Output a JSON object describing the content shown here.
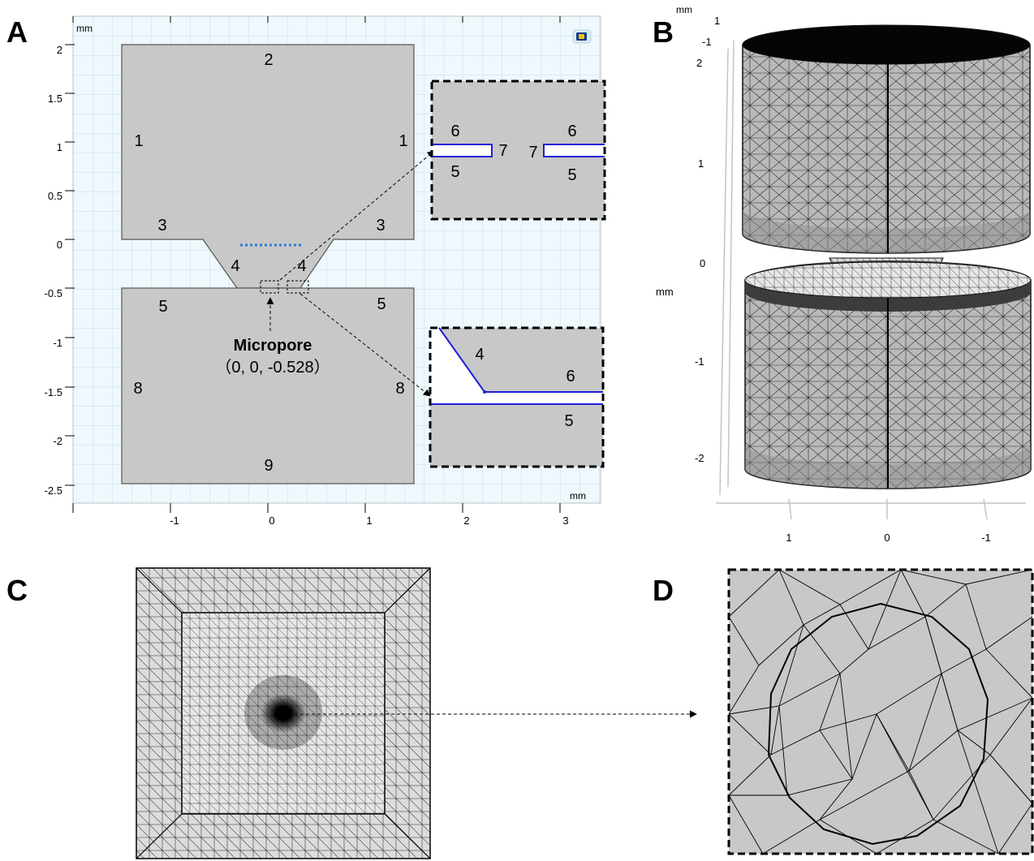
{
  "panels": {
    "a": {
      "letter": "A",
      "unit_top": "mm",
      "unit_bottom": "mm",
      "y_ticks": [
        "2",
        "1.5",
        "1",
        "0.5",
        "0",
        "-0.5",
        "-1",
        "-1.5",
        "-2",
        "-2.5"
      ],
      "x_ticks": [
        "-1",
        "0",
        "1",
        "2",
        "3"
      ],
      "region_labels": [
        "2",
        "1",
        "1",
        "3",
        "3",
        "4",
        "4",
        "5",
        "5",
        "8",
        "8",
        "9"
      ],
      "micropore_title": "Micropore",
      "micropore_coords": "（0, 0, -0.528）",
      "inset_top_labels": [
        "6",
        "7",
        "5",
        "7",
        "6",
        "5"
      ],
      "inset_bottom_labels": [
        "4",
        "6",
        "5"
      ],
      "accent_color": "#1f1fd6",
      "dotted_line_color": "#2b7bd8"
    },
    "b": {
      "letter": "B",
      "axis_unit": "mm",
      "vertical_unit": "mm",
      "top_ticks": [
        "1",
        "-1"
      ],
      "z_ticks": [
        "2",
        "1",
        "0",
        "-1",
        "-2"
      ],
      "x_ticks": [
        "1",
        "0",
        "-1"
      ]
    },
    "c": {
      "letter": "C"
    },
    "d": {
      "letter": "D"
    }
  }
}
